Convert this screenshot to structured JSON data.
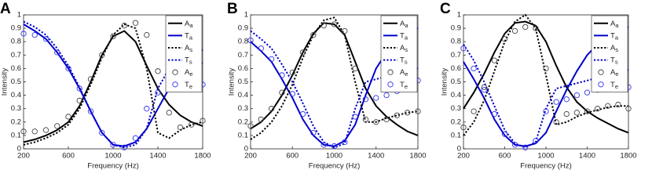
{
  "chart_data": [
    {
      "type": "line",
      "panel_label": "A",
      "xlabel": "Frequency (Hz)",
      "ylabel": "Intensity",
      "xlim": [
        200,
        1800
      ],
      "ylim": [
        0,
        1
      ],
      "xticks": [
        200,
        600,
        1000,
        1400,
        1800
      ],
      "yticks": [
        0,
        0.1,
        0.2,
        0.3,
        0.4,
        0.5,
        0.6,
        0.7,
        0.8,
        0.9,
        1
      ],
      "x": [
        200,
        300,
        400,
        500,
        600,
        700,
        800,
        900,
        1000,
        1100,
        1200,
        1300,
        1400,
        1500,
        1600,
        1700,
        1800
      ],
      "series": [
        {
          "name": "Aa",
          "color": "#000000",
          "style": "solid",
          "values": [
            0.05,
            0.07,
            0.1,
            0.14,
            0.2,
            0.32,
            0.5,
            0.7,
            0.84,
            0.88,
            0.8,
            0.62,
            0.45,
            0.33,
            0.25,
            0.2,
            0.17
          ]
        },
        {
          "name": "Ta",
          "color": "#0000cc",
          "style": "solid",
          "values": [
            0.93,
            0.88,
            0.82,
            0.72,
            0.6,
            0.45,
            0.28,
            0.12,
            0.03,
            0.02,
            0.05,
            0.15,
            0.3,
            0.45,
            0.6,
            0.68,
            0.74
          ]
        },
        {
          "name": "As",
          "color": "#000000",
          "style": "dotted",
          "values": [
            0.03,
            0.05,
            0.08,
            0.12,
            0.18,
            0.3,
            0.48,
            0.68,
            0.85,
            0.93,
            0.9,
            0.6,
            0.12,
            0.08,
            0.14,
            0.18,
            0.2
          ]
        },
        {
          "name": "Ts",
          "color": "#0000cc",
          "style": "dotted",
          "values": [
            0.95,
            0.91,
            0.85,
            0.75,
            0.62,
            0.46,
            0.28,
            0.12,
            0.03,
            0.01,
            0.03,
            0.15,
            0.45,
            0.6,
            0.64,
            0.64,
            0.64
          ]
        },
        {
          "name": "Ae",
          "color": "#444444",
          "style": "markers",
          "values": [
            0.13,
            0.13,
            0.14,
            0.17,
            0.24,
            0.36,
            0.52,
            0.7,
            0.84,
            0.92,
            0.94,
            0.85,
            0.58,
            0.27,
            0.16,
            0.18,
            0.21
          ]
        },
        {
          "name": "Te",
          "color": "#3333ee",
          "style": "markers",
          "values": [
            0.86,
            0.85,
            0.82,
            0.72,
            0.6,
            0.45,
            0.28,
            0.12,
            0.03,
            0.01,
            0.08,
            0.3,
            0.42,
            0.47,
            0.47,
            0.47,
            0.48
          ]
        }
      ]
    },
    {
      "type": "line",
      "panel_label": "B",
      "xlabel": "Frequency (Hz)",
      "ylabel": "Intensity",
      "xlim": [
        200,
        1800
      ],
      "ylim": [
        0,
        1
      ],
      "xticks": [
        200,
        600,
        1000,
        1400,
        1800
      ],
      "yticks": [
        0,
        0.1,
        0.2,
        0.3,
        0.4,
        0.5,
        0.6,
        0.7,
        0.8,
        0.9,
        1
      ],
      "x": [
        200,
        300,
        400,
        500,
        600,
        700,
        800,
        900,
        1000,
        1100,
        1200,
        1300,
        1400,
        1500,
        1600,
        1700,
        1800
      ],
      "series": [
        {
          "name": "Aa",
          "color": "#000000",
          "style": "solid",
          "values": [
            0.15,
            0.2,
            0.28,
            0.4,
            0.55,
            0.72,
            0.86,
            0.94,
            0.93,
            0.85,
            0.65,
            0.45,
            0.32,
            0.24,
            0.18,
            0.13,
            0.1
          ]
        },
        {
          "name": "Ta",
          "color": "#0000cc",
          "style": "solid",
          "values": [
            0.8,
            0.73,
            0.65,
            0.52,
            0.38,
            0.22,
            0.1,
            0.03,
            0.02,
            0.06,
            0.18,
            0.4,
            0.6,
            0.72,
            0.8,
            0.86,
            0.9
          ]
        },
        {
          "name": "As",
          "color": "#000000",
          "style": "dotted",
          "values": [
            0.07,
            0.12,
            0.2,
            0.32,
            0.48,
            0.68,
            0.85,
            0.96,
            0.98,
            0.85,
            0.5,
            0.2,
            0.2,
            0.23,
            0.25,
            0.27,
            0.28
          ]
        },
        {
          "name": "Ts",
          "color": "#0000cc",
          "style": "dotted",
          "values": [
            0.88,
            0.82,
            0.75,
            0.63,
            0.5,
            0.34,
            0.17,
            0.05,
            0.01,
            0.04,
            0.3,
            0.5,
            0.52,
            0.54,
            0.56,
            0.58,
            0.6
          ]
        },
        {
          "name": "Ae",
          "color": "#444444",
          "style": "markers",
          "values": [
            0.17,
            0.22,
            0.3,
            0.42,
            0.57,
            0.72,
            0.85,
            0.92,
            0.93,
            0.88,
            0.6,
            0.22,
            0.2,
            0.22,
            0.25,
            0.27,
            0.28
          ]
        },
        {
          "name": "Te",
          "color": "#3333ee",
          "style": "markers",
          "values": [
            0.81,
            0.75,
            0.67,
            0.55,
            0.41,
            0.26,
            0.12,
            0.03,
            0.02,
            0.05,
            0.24,
            0.37,
            0.38,
            0.4,
            0.43,
            0.47,
            0.51
          ]
        }
      ]
    },
    {
      "type": "line",
      "panel_label": "C",
      "xlabel": "Frequency (Hz)",
      "ylabel": "Intensity",
      "xlim": [
        200,
        1800
      ],
      "ylim": [
        0,
        1
      ],
      "xticks": [
        200,
        600,
        1000,
        1400,
        1800
      ],
      "yticks": [
        0,
        0.1,
        0.2,
        0.3,
        0.4,
        0.5,
        0.6,
        0.7,
        0.8,
        0.9,
        1
      ],
      "x": [
        200,
        300,
        400,
        500,
        600,
        700,
        800,
        900,
        1000,
        1100,
        1200,
        1300,
        1400,
        1500,
        1600,
        1700,
        1800
      ],
      "series": [
        {
          "name": "Aa",
          "color": "#000000",
          "style": "solid",
          "values": [
            0.3,
            0.42,
            0.56,
            0.72,
            0.86,
            0.94,
            0.95,
            0.92,
            0.8,
            0.62,
            0.46,
            0.35,
            0.28,
            0.23,
            0.19,
            0.15,
            0.12
          ]
        },
        {
          "name": "Ta",
          "color": "#0000cc",
          "style": "solid",
          "values": [
            0.65,
            0.52,
            0.38,
            0.22,
            0.1,
            0.03,
            0.02,
            0.04,
            0.12,
            0.28,
            0.44,
            0.58,
            0.7,
            0.78,
            0.84,
            0.88,
            0.91
          ]
        },
        {
          "name": "As",
          "color": "#000000",
          "style": "dotted",
          "values": [
            0.1,
            0.2,
            0.36,
            0.58,
            0.8,
            0.95,
            1.0,
            0.9,
            0.55,
            0.18,
            0.2,
            0.24,
            0.27,
            0.29,
            0.31,
            0.32,
            0.32
          ]
        },
        {
          "name": "Ts",
          "color": "#0000cc",
          "style": "dotted",
          "values": [
            0.78,
            0.66,
            0.5,
            0.32,
            0.14,
            0.04,
            0.01,
            0.05,
            0.3,
            0.45,
            0.47,
            0.49,
            0.51,
            0.53,
            0.55,
            0.57,
            0.59
          ]
        },
        {
          "name": "Ae",
          "color": "#444444",
          "style": "markers",
          "values": [
            0.16,
            0.28,
            0.46,
            0.66,
            0.82,
            0.88,
            0.91,
            0.9,
            0.6,
            0.2,
            0.26,
            0.27,
            0.28,
            0.3,
            0.32,
            0.33,
            0.3
          ]
        },
        {
          "name": "Te",
          "color": "#3333ee",
          "style": "markers",
          "values": [
            0.75,
            0.6,
            0.44,
            0.26,
            0.11,
            0.03,
            0.01,
            0.06,
            0.28,
            0.35,
            0.37,
            0.4,
            0.42,
            0.44,
            0.46,
            0.47,
            0.46
          ]
        }
      ]
    }
  ]
}
